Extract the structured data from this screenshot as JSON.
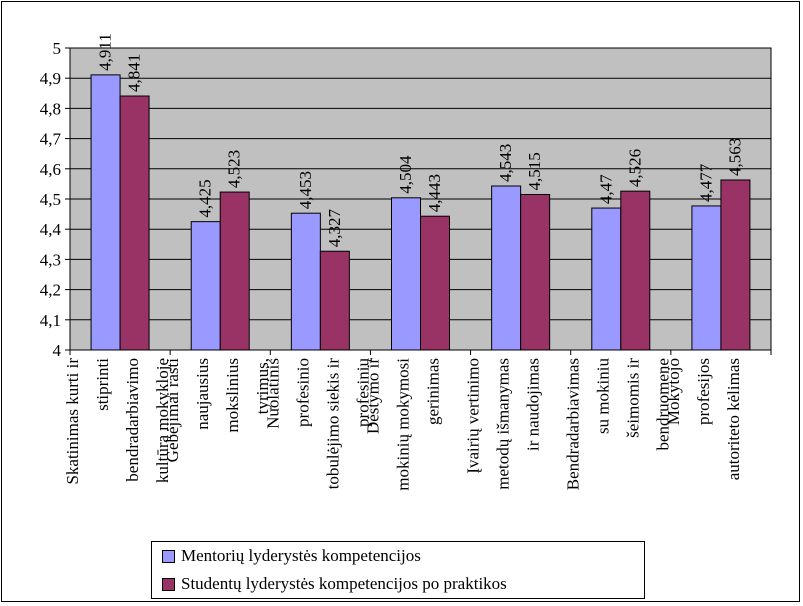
{
  "chart_data": {
    "type": "bar",
    "categories": [
      [
        "Skatinimas kurti ir",
        "stiprinti",
        "bendradarbiavimo",
        "kultūrą mokykloje"
      ],
      [
        "Gebėjimai rasti",
        "naujausius",
        "mokslinius",
        "tyrimus,"
      ],
      [
        "Nuolatinis",
        "profesinio",
        "tobulėjimo siekis ir",
        "profesinių"
      ],
      [
        "Dėstymo ir",
        "mokinių mokymosi",
        "gerinimas"
      ],
      [
        "Įvairių vertinimo",
        "metodų išmanymas",
        "ir naudojimas"
      ],
      [
        "Bendradarbiavimas",
        "su mokiniu",
        "šeimomis ir",
        "bendruomene"
      ],
      [
        "Mokytojo",
        "profesijos",
        "autoriteto kėlimas"
      ]
    ],
    "series": [
      {
        "name": "Mentorių lyderystės kompetencijos",
        "color": "#9999ff",
        "values": [
          4.911,
          4.425,
          4.453,
          4.504,
          4.543,
          4.47,
          4.477
        ],
        "labels": [
          "4,911",
          "4,425",
          "4,453",
          "4,504",
          "4,543",
          "4,47",
          "4,477"
        ]
      },
      {
        "name": "Studentų lyderystės kompetencijos po praktikos",
        "color": "#993366",
        "values": [
          4.841,
          4.523,
          4.327,
          4.443,
          4.515,
          4.526,
          4.563
        ],
        "labels": [
          "4,841",
          "4,523",
          "4,327",
          "4,443",
          "4,515",
          "4,526",
          "4,563"
        ]
      }
    ],
    "ylim": [
      4,
      5
    ],
    "yticks": [
      "4",
      "4,1",
      "4,2",
      "4,3",
      "4,4",
      "4,5",
      "4,6",
      "4,7",
      "4,8",
      "4,9",
      "5"
    ],
    "plot_background": "#c0c0c0",
    "grid": true,
    "legend_position": "bottom"
  }
}
